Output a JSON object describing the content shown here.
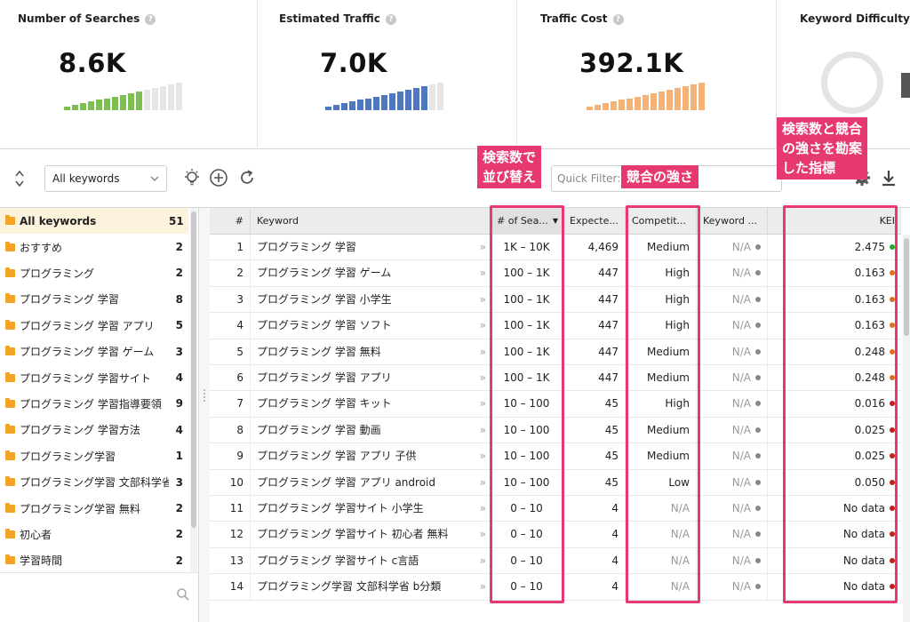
{
  "metrics": [
    {
      "title": "Number of Searches",
      "value": "8.6K",
      "color": "#7ec04f",
      "filled": 10,
      "total": 15
    },
    {
      "title": "Estimated Traffic",
      "value": "7.0K",
      "color": "#4f79bf",
      "filled": 13,
      "total": 15
    },
    {
      "title": "Traffic Cost",
      "value": "392.1K",
      "color": "#f3b377",
      "filled": 15,
      "total": 15
    },
    {
      "title": "Keyword Difficulty"
    }
  ],
  "help_icon": "?",
  "toolbar": {
    "filter_select": "All keywords",
    "quick_filter_placeholder": "Quick Filter: c"
  },
  "sidebar": {
    "items": [
      {
        "name": "All keywords",
        "count": "51",
        "active": true
      },
      {
        "name": "おすすめ",
        "count": "2"
      },
      {
        "name": "プログラミング",
        "count": "2"
      },
      {
        "name": "プログラミング 学習",
        "count": "8"
      },
      {
        "name": "プログラミング 学習 アプリ",
        "count": "5"
      },
      {
        "name": "プログラミング 学習 ゲーム",
        "count": "3"
      },
      {
        "name": "プログラミング 学習サイト",
        "count": "4"
      },
      {
        "name": "プログラミング 学習指導要領",
        "count": "9"
      },
      {
        "name": "プログラミング 学習方法",
        "count": "4"
      },
      {
        "name": "プログラミング学習",
        "count": "1"
      },
      {
        "name": "プログラミング学習 文部科学省",
        "count": "3"
      },
      {
        "name": "プログラミング学習 無料",
        "count": "2"
      },
      {
        "name": "初心者",
        "count": "2"
      },
      {
        "name": "学習時間",
        "count": "2"
      }
    ]
  },
  "table": {
    "headers": [
      "#",
      "Keyword",
      "# of Sea...",
      "Expecte...",
      "Competit...",
      "Keyword ...",
      "KEI"
    ],
    "rows": [
      {
        "n": "1",
        "kw": "プログラミング 学習",
        "searches": "1K – 10K",
        "expected": "4,469",
        "comp": "Medium",
        "kwd": "N/A",
        "kei": "2.475",
        "kei_color": "#22aa22"
      },
      {
        "n": "2",
        "kw": "プログラミング 学習 ゲーム",
        "searches": "100 – 1K",
        "expected": "447",
        "comp": "High",
        "kwd": "N/A",
        "kei": "0.163",
        "kei_color": "#e07020"
      },
      {
        "n": "3",
        "kw": "プログラミング 学習 小学生",
        "searches": "100 – 1K",
        "expected": "447",
        "comp": "High",
        "kwd": "N/A",
        "kei": "0.163",
        "kei_color": "#e07020"
      },
      {
        "n": "4",
        "kw": "プログラミング 学習 ソフト",
        "searches": "100 – 1K",
        "expected": "447",
        "comp": "High",
        "kwd": "N/A",
        "kei": "0.163",
        "kei_color": "#e07020"
      },
      {
        "n": "5",
        "kw": "プログラミング 学習 無料",
        "searches": "100 – 1K",
        "expected": "447",
        "comp": "Medium",
        "kwd": "N/A",
        "kei": "0.248",
        "kei_color": "#e07020"
      },
      {
        "n": "6",
        "kw": "プログラミング 学習 アプリ",
        "searches": "100 – 1K",
        "expected": "447",
        "comp": "Medium",
        "kwd": "N/A",
        "kei": "0.248",
        "kei_color": "#e07020"
      },
      {
        "n": "7",
        "kw": "プログラミング 学習 キット",
        "searches": "10 – 100",
        "expected": "45",
        "comp": "High",
        "kwd": "N/A",
        "kei": "0.016",
        "kei_color": "#c81e1e"
      },
      {
        "n": "8",
        "kw": "プログラミング 学習 動画",
        "searches": "10 – 100",
        "expected": "45",
        "comp": "Medium",
        "kwd": "N/A",
        "kei": "0.025",
        "kei_color": "#c81e1e"
      },
      {
        "n": "9",
        "kw": "プログラミング 学習 アプリ 子供",
        "searches": "10 – 100",
        "expected": "45",
        "comp": "Medium",
        "kwd": "N/A",
        "kei": "0.025",
        "kei_color": "#c81e1e"
      },
      {
        "n": "10",
        "kw": "プログラミング 学習 アプリ android",
        "searches": "10 – 100",
        "expected": "45",
        "comp": "Low",
        "kwd": "N/A",
        "kei": "0.050",
        "kei_color": "#c81e1e"
      },
      {
        "n": "11",
        "kw": "プログラミング 学習サイト 小学生",
        "searches": "0 – 10",
        "expected": "4",
        "comp": "N/A",
        "kwd": "N/A",
        "kei": "No data",
        "kei_color": "#c81e1e"
      },
      {
        "n": "12",
        "kw": "プログラミング 学習サイト 初心者 無料",
        "searches": "0 – 10",
        "expected": "4",
        "comp": "N/A",
        "kwd": "N/A",
        "kei": "No data",
        "kei_color": "#c81e1e"
      },
      {
        "n": "13",
        "kw": "プログラミング 学習サイト c言語",
        "searches": "0 – 10",
        "expected": "4",
        "comp": "N/A",
        "kwd": "N/A",
        "kei": "No data",
        "kei_color": "#c81e1e"
      },
      {
        "n": "14",
        "kw": "プログラミング学習 文部科学省 b分類",
        "searches": "0 – 10",
        "expected": "4",
        "comp": "N/A",
        "kwd": "N/A",
        "kei": "No data",
        "kei_color": "#c81e1e"
      }
    ]
  },
  "annotations": {
    "sort": [
      "検索数で",
      "並び替え"
    ],
    "competition": "競合の強さ",
    "kei": [
      "検索数と競合",
      "の強さを勘案",
      "した指標"
    ],
    "color": "#e5396f"
  }
}
